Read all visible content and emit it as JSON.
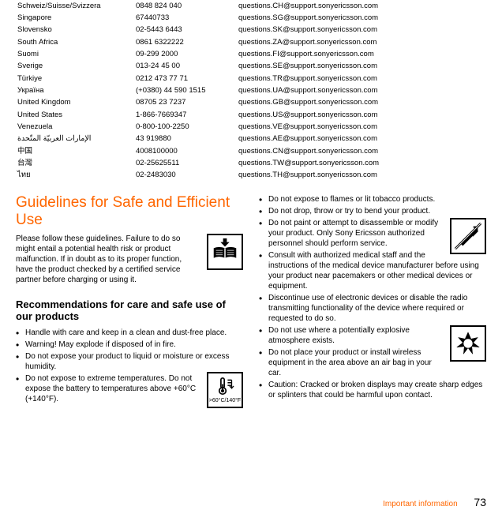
{
  "support_table": {
    "rows": [
      [
        "Schweiz/Suisse/Svizzera",
        "0848 824 040",
        "questions.CH@support.sonyericsson.com"
      ],
      [
        "Singapore",
        "67440733",
        "questions.SG@support.sonyericsson.com"
      ],
      [
        "Slovensko",
        "02-5443 6443",
        "questions.SK@support.sonyericsson.com"
      ],
      [
        "South Africa",
        "0861 6322222",
        "questions.ZA@support.sonyericsson.com"
      ],
      [
        "Suomi",
        "09-299 2000",
        "questions.FI@support.sonyericsson.com"
      ],
      [
        "Sverige",
        "013-24 45 00",
        "questions.SE@support.sonyericsson.com"
      ],
      [
        "Türkiye",
        "0212 473 77 71",
        "questions.TR@support.sonyericsson.com"
      ],
      [
        "Україна",
        "(+0380) 44 590 1515",
        "questions.UA@support.sonyericsson.com"
      ],
      [
        "United Kingdom",
        "08705 23 7237",
        "questions.GB@support.sonyericsson.com"
      ],
      [
        "United States",
        "1-866-7669347",
        "questions.US@support.sonyericsson.com"
      ],
      [
        "Venezuela",
        "0-800-100-2250",
        "questions.VE@support.sonyericsson.com"
      ],
      [
        "الإمارات العربيّة المتّحدة",
        "43 919880",
        "questions.AE@support.sonyericsson.com"
      ],
      [
        "中国",
        "4008100000",
        "questions.CN@support.sonyericsson.com"
      ],
      [
        "台灣",
        "02-25625511",
        "questions.TW@support.sonyericsson.com"
      ],
      [
        "ไทย",
        "02-2483030",
        "questions.TH@support.sonyericsson.com"
      ]
    ]
  },
  "heading_guidelines": "Guidelines for Safe and Efficient Use",
  "intro_text": "Please follow these guidelines. Failure to do so might entail a potential health risk or product malfunction. If in doubt as to its proper function, have the product checked by a certified service partner before charging or using it.",
  "heading_recommendations": "Recommendations for care and safe use of our products",
  "bullets_left": [
    "Handle with care and keep in a clean and dust-free place.",
    "Warning! May explode if disposed of in fire.",
    "Do not expose your product to liquid or moisture or excess humidity.",
    "Do not expose to extreme temperatures. Do not expose the battery to temperatures above +60°C (+140°F)."
  ],
  "bullets_right": [
    "Do not expose to flames or lit tobacco products.",
    "Do not drop, throw or try to bend your product.",
    "Do not paint or attempt to disassemble or modify your product. Only Sony Ericsson authorized personnel should perform service.",
    "Consult with authorized medical staff and the instructions of the medical device manufacturer before using your product near pacemakers or other medical devices or equipment.",
    "Discontinue use of electronic devices or disable the radio transmitting functionality of the device where required or requested to do so.",
    "Do not use where a potentially explosive atmosphere exists.",
    "Do not place your product or install wireless equipment in the area above an air bag in your car.",
    "Caution: Cracked or broken displays may create sharp edges or splinters that could be harmful upon contact."
  ],
  "temp_icon_label": ">60°C/140°F",
  "footer": {
    "section": "Important information",
    "page": "73"
  }
}
